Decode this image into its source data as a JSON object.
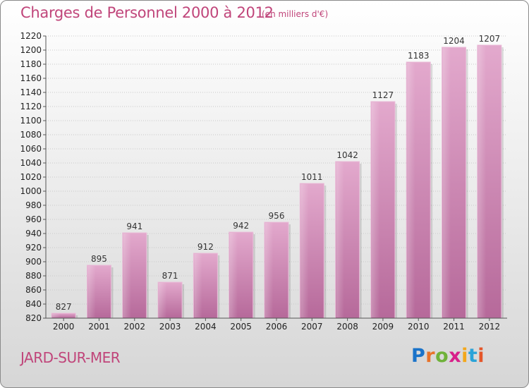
{
  "chart_data": {
    "type": "bar",
    "title": "Charges de Personnel 2000 à 2012",
    "subtitle": "(en milliers d'€)",
    "categories": [
      "2000",
      "2001",
      "2002",
      "2003",
      "2004",
      "2005",
      "2006",
      "2007",
      "2008",
      "2009",
      "2010",
      "2011",
      "2012"
    ],
    "values": [
      827,
      895,
      941,
      871,
      912,
      942,
      956,
      1011,
      1042,
      1127,
      1183,
      1204,
      1207
    ],
    "ylim": [
      820,
      1220
    ],
    "yticks": [
      820,
      840,
      860,
      880,
      900,
      920,
      940,
      960,
      980,
      1000,
      1020,
      1040,
      1060,
      1080,
      1100,
      1120,
      1140,
      1160,
      1180,
      1200,
      1220
    ],
    "grid": true,
    "bar_color": "#cc6fa3"
  },
  "footer": {
    "commune": "JARD-SUR-MER",
    "brand": "Proxiti"
  }
}
